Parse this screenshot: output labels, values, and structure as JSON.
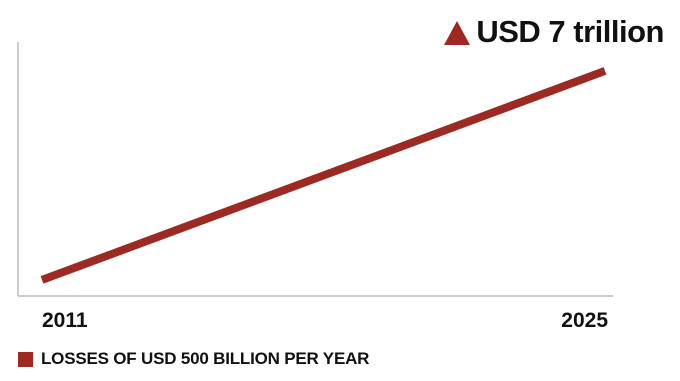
{
  "chart_data": {
    "type": "line",
    "x": [
      2011,
      2025
    ],
    "xlim": [
      2011,
      2025
    ],
    "tick_labels": [
      "2011",
      "2025"
    ],
    "series": [
      {
        "name": "LOSSES OF USD 500 BILLION PER YEAR",
        "values": [
          0.5,
          7
        ],
        "color": "#9c2a22"
      }
    ],
    "ylim": [
      0,
      7.9
    ],
    "annotation": "USD 7 trillion",
    "annotation_icon": "up-triangle-icon",
    "legend_position": "bottom-left",
    "grid": false,
    "axis_color": "#cccccc"
  }
}
